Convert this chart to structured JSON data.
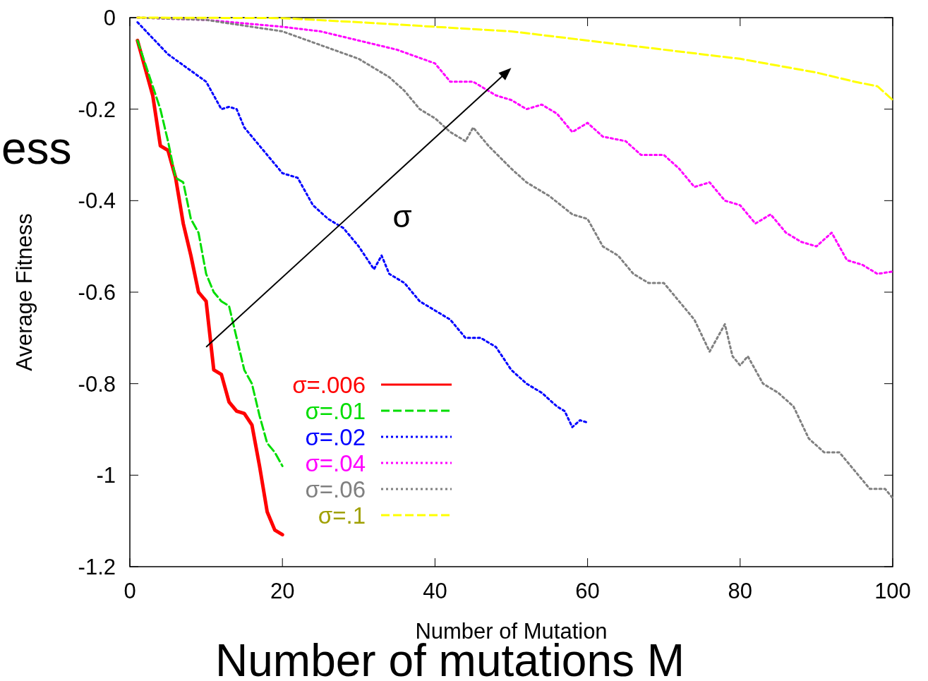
{
  "chart_data": {
    "type": "line",
    "xlabel": "Number of Mutation",
    "ylabel": "Average Fitness",
    "xlim": [
      0,
      100
    ],
    "ylim": [
      -1.2,
      0
    ],
    "xticks": [
      0,
      20,
      40,
      60,
      80,
      100
    ],
    "yticks": [
      -1.2,
      -1,
      -0.8,
      -0.6,
      -0.4,
      -0.2,
      0
    ],
    "grid": false,
    "legend": "bottom left",
    "marker": "none",
    "annotations": [
      "σ",
      "ess",
      "Number of mutations M"
    ],
    "series": [
      {
        "name": "σ=.006",
        "color": "#ff0000",
        "line_style": "solid",
        "x": [
          1,
          3,
          4,
          5,
          6,
          7,
          8,
          9,
          10,
          11,
          12,
          13,
          14,
          15,
          16,
          17,
          18,
          19,
          20
        ],
        "values": [
          -0.05,
          -0.17,
          -0.28,
          -0.29,
          -0.35,
          -0.45,
          -0.52,
          -0.6,
          -0.62,
          -0.77,
          -0.78,
          -0.84,
          -0.86,
          -0.865,
          -0.89,
          -0.98,
          -1.08,
          -1.12,
          -1.13
        ]
      },
      {
        "name": "σ=.01",
        "color": "#00dd00",
        "line_style": "dashed",
        "x": [
          1,
          2,
          3,
          4,
          5,
          6,
          7,
          8,
          9,
          10,
          11,
          12,
          13,
          14,
          15,
          16,
          17,
          18,
          19,
          20
        ],
        "values": [
          -0.05,
          -0.1,
          -0.15,
          -0.2,
          -0.27,
          -0.35,
          -0.36,
          -0.44,
          -0.47,
          -0.56,
          -0.6,
          -0.62,
          -0.63,
          -0.7,
          -0.77,
          -0.8,
          -0.87,
          -0.93,
          -0.95,
          -0.98
        ]
      },
      {
        "name": "σ=.02",
        "color": "#0000ff",
        "line_style": "dotted",
        "x": [
          1,
          5,
          10,
          12,
          13,
          14,
          15,
          18,
          20,
          22,
          24,
          26,
          28,
          30,
          32,
          33,
          34,
          36,
          38,
          40,
          42,
          44,
          46,
          48,
          50,
          52,
          54,
          56,
          57,
          58,
          59,
          60
        ],
        "values": [
          -0.01,
          -0.08,
          -0.14,
          -0.2,
          -0.195,
          -0.2,
          -0.24,
          -0.3,
          -0.34,
          -0.35,
          -0.41,
          -0.44,
          -0.46,
          -0.5,
          -0.55,
          -0.52,
          -0.56,
          -0.58,
          -0.62,
          -0.64,
          -0.66,
          -0.7,
          -0.7,
          -0.72,
          -0.77,
          -0.8,
          -0.82,
          -0.85,
          -0.86,
          -0.895,
          -0.88,
          -0.885
        ]
      },
      {
        "name": "σ=.04",
        "color": "#ff00ff",
        "line_style": "dotted",
        "x": [
          1,
          10,
          20,
          25,
          30,
          35,
          40,
          42,
          45,
          48,
          50,
          52,
          54,
          56,
          58,
          60,
          62,
          65,
          67,
          70,
          72,
          74,
          76,
          78,
          80,
          82,
          84,
          86,
          88,
          90,
          92,
          94,
          96,
          98,
          100
        ],
        "values": [
          0,
          -0.005,
          -0.02,
          -0.03,
          -0.05,
          -0.07,
          -0.1,
          -0.14,
          -0.14,
          -0.17,
          -0.18,
          -0.2,
          -0.19,
          -0.21,
          -0.25,
          -0.23,
          -0.26,
          -0.27,
          -0.3,
          -0.3,
          -0.33,
          -0.37,
          -0.36,
          -0.4,
          -0.41,
          -0.45,
          -0.43,
          -0.47,
          -0.49,
          -0.5,
          -0.47,
          -0.53,
          -0.54,
          -0.56,
          -0.555
        ]
      },
      {
        "name": "σ=.06",
        "color": "#808080",
        "line_style": "dotted",
        "x": [
          1,
          10,
          20,
          25,
          30,
          34,
          36,
          38,
          40,
          42,
          44,
          45,
          47,
          50,
          52,
          55,
          58,
          60,
          62,
          64,
          66,
          68,
          70,
          72,
          74,
          76,
          78,
          79,
          80,
          81,
          83,
          85,
          87,
          89,
          91,
          93,
          95,
          97,
          99,
          100
        ],
        "values": [
          0,
          -0.005,
          -0.03,
          -0.06,
          -0.09,
          -0.13,
          -0.16,
          -0.2,
          -0.22,
          -0.25,
          -0.27,
          -0.24,
          -0.28,
          -0.33,
          -0.36,
          -0.39,
          -0.43,
          -0.44,
          -0.5,
          -0.52,
          -0.56,
          -0.58,
          -0.58,
          -0.62,
          -0.66,
          -0.73,
          -0.67,
          -0.74,
          -0.76,
          -0.74,
          -0.8,
          -0.82,
          -0.85,
          -0.92,
          -0.95,
          -0.95,
          -0.99,
          -1.03,
          -1.03,
          -1.05
        ]
      },
      {
        "name": "σ=.1",
        "color": "#ffff00",
        "line_style": "dashed",
        "x": [
          1,
          20,
          30,
          40,
          50,
          60,
          70,
          80,
          90,
          95,
          98,
          100
        ],
        "values": [
          0,
          -0.001,
          -0.01,
          -0.02,
          -0.03,
          -0.05,
          -0.07,
          -0.09,
          -0.12,
          -0.14,
          -0.15,
          -0.18
        ]
      }
    ]
  }
}
